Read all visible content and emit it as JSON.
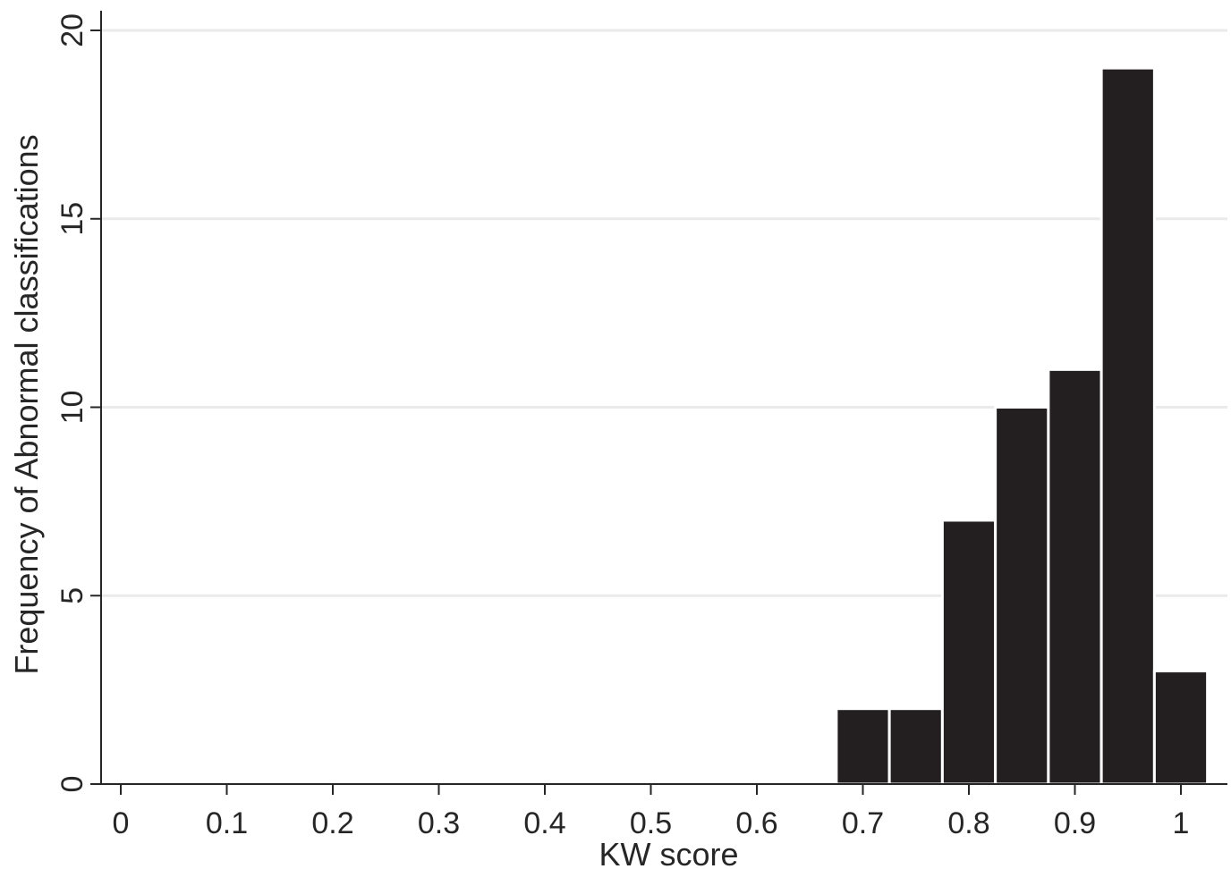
{
  "chart_data": {
    "type": "bar",
    "title": "",
    "xlabel": "KW score",
    "ylabel": "Frequency of Abnormal classifications",
    "xlim": [
      0,
      1
    ],
    "ylim": [
      0,
      20
    ],
    "x_ticks": [
      "0",
      "0.1",
      "0.2",
      "0.3",
      "0.4",
      "0.5",
      "0.6",
      "0.7",
      "0.8",
      "0.9",
      "1"
    ],
    "y_ticks": [
      "0",
      "5",
      "10",
      "15",
      "20"
    ],
    "grid": true,
    "bin_width": 0.05,
    "bins": [
      {
        "x_start": 0.675,
        "x_end": 0.725,
        "value": 2
      },
      {
        "x_start": 0.725,
        "x_end": 0.775,
        "value": 2
      },
      {
        "x_start": 0.775,
        "x_end": 0.825,
        "value": 7
      },
      {
        "x_start": 0.825,
        "x_end": 0.875,
        "value": 10
      },
      {
        "x_start": 0.875,
        "x_end": 0.925,
        "value": 11
      },
      {
        "x_start": 0.925,
        "x_end": 0.975,
        "value": 19
      },
      {
        "x_start": 0.975,
        "x_end": 1.025,
        "value": 3
      }
    ],
    "colors": {
      "bar": "#231f20",
      "grid": "#eaeaea",
      "axis": "#262626"
    }
  }
}
